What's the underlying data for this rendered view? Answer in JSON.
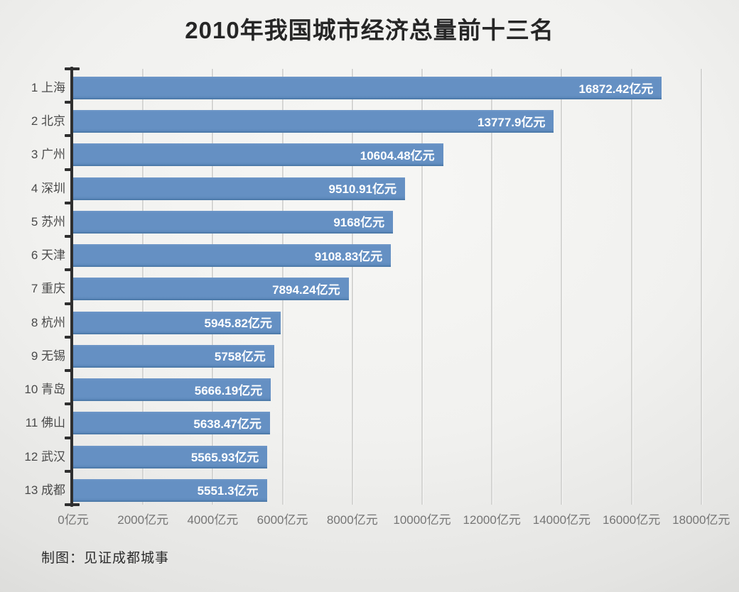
{
  "title": "2010年我国城市经济总量前十三名",
  "footer": {
    "credit": "制图：见证成都城事"
  },
  "chart_data": {
    "type": "bar",
    "orientation": "horizontal",
    "title": "2010年我国城市经济总量前十三名",
    "unit": "亿元",
    "categories": [
      "1 上海",
      "2 北京",
      "3 广州",
      "4 深圳",
      "5 苏州",
      "6 天津",
      "7 重庆",
      "8 杭州",
      "9 无锡",
      "10 青岛",
      "11 佛山",
      "12 武汉",
      "13 成都"
    ],
    "values": [
      16872.42,
      13777.9,
      10604.48,
      9510.91,
      9168,
      9108.83,
      7894.24,
      5945.82,
      5758,
      5666.19,
      5638.47,
      5565.93,
      5551.3
    ],
    "value_labels": [
      "16872.42亿元",
      "13777.9亿元",
      "10604.48亿元",
      "9510.91亿元",
      "9168亿元",
      "9108.83亿元",
      "7894.24亿元",
      "5945.82亿元",
      "5758亿元",
      "5666.19亿元",
      "5638.47亿元",
      "5565.93亿元",
      "5551.3亿元"
    ],
    "x_ticks": [
      {
        "value": 0,
        "label": "0亿元"
      },
      {
        "value": 2000,
        "label": "2000亿元"
      },
      {
        "value": 4000,
        "label": "4000亿元"
      },
      {
        "value": 6000,
        "label": "6000亿元"
      },
      {
        "value": 8000,
        "label": "8000亿元"
      },
      {
        "value": 10000,
        "label": "10000亿元"
      },
      {
        "value": 12000,
        "label": "12000亿元"
      },
      {
        "value": 14000,
        "label": "14000亿元"
      },
      {
        "value": 16000,
        "label": "16000亿元"
      },
      {
        "value": 18000,
        "label": "18000亿元"
      }
    ],
    "xlim": [
      0,
      18000
    ],
    "grid": "vertical",
    "legend": "none",
    "colors": {
      "bar_fill": "#6590c3",
      "bar_edge": "#4f7cab",
      "axis": "#2f2f2f",
      "gridline": "#d5d5d3",
      "value_label": "#ffffff",
      "category_label": "#4a4a4a",
      "tick_label": "#757575",
      "title": "#262626"
    }
  }
}
